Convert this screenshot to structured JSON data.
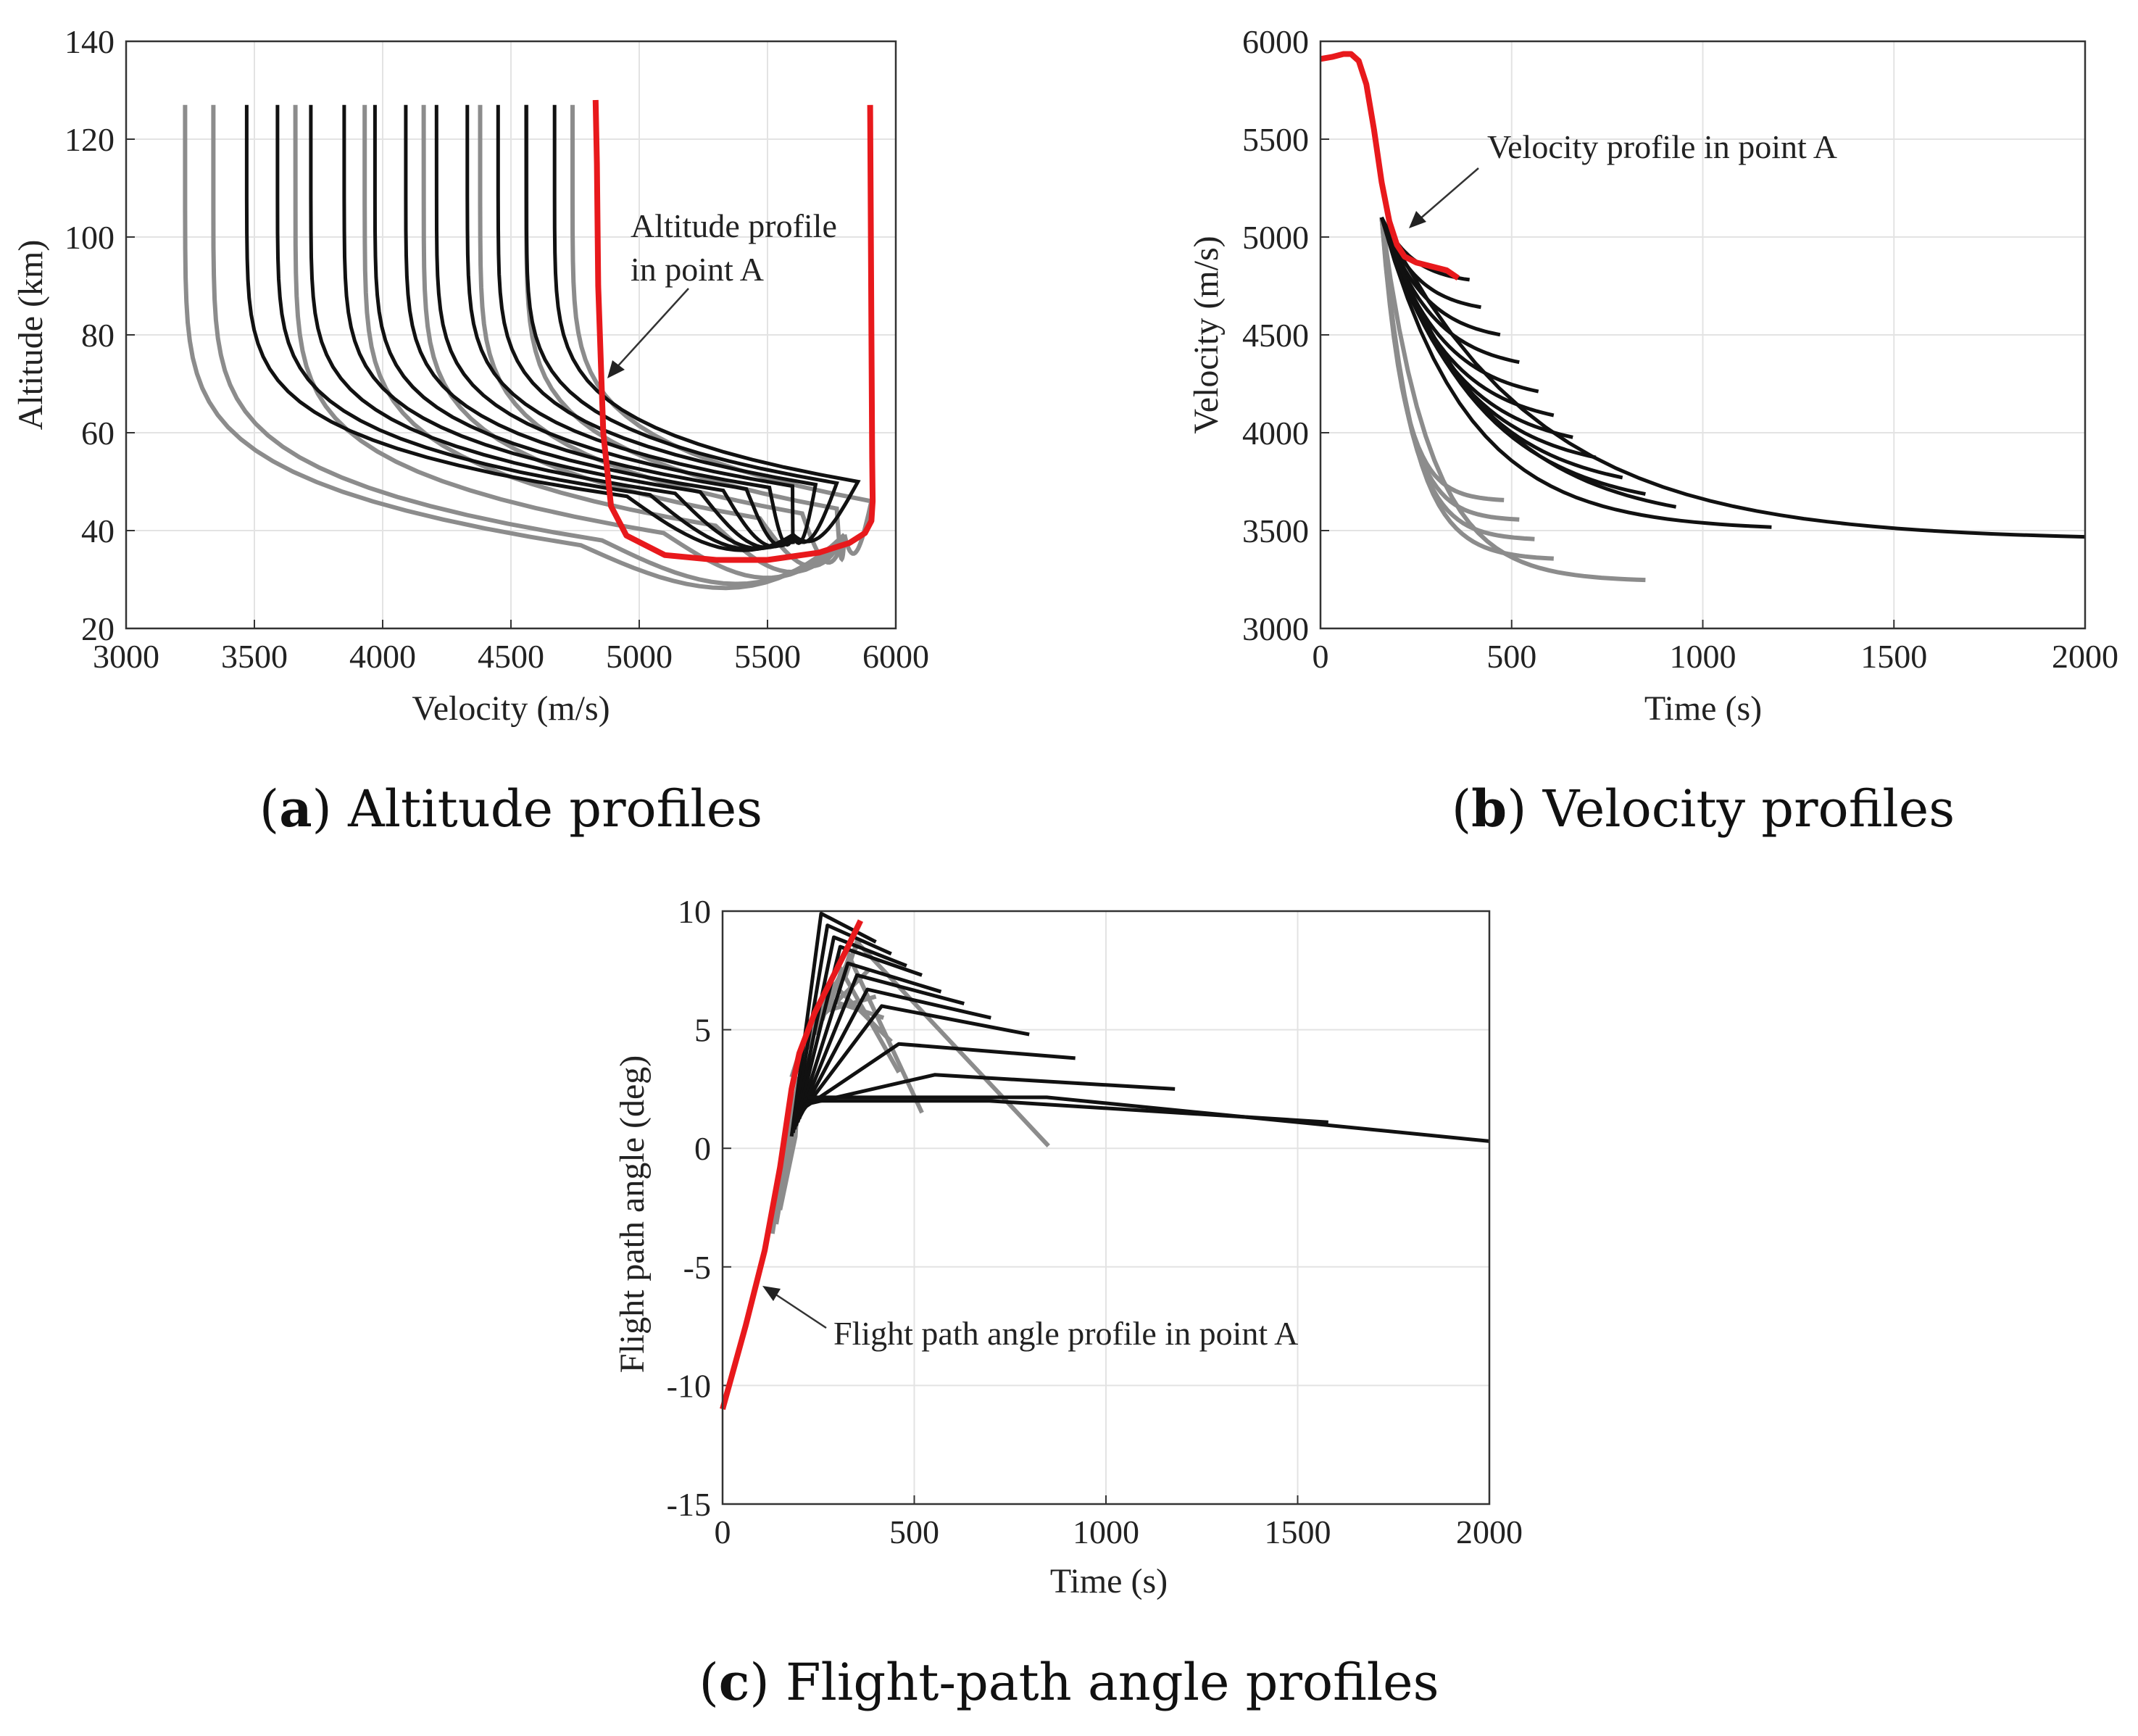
{
  "chart_data": [
    {
      "type": "line",
      "title": "Altitude profiles",
      "caption": {
        "letter": "a",
        "text": "Altitude profiles"
      },
      "xlabel": "Velocity (m/s)",
      "ylabel": "Altitude (km)",
      "xlim": [
        3000,
        6000
      ],
      "ylim": [
        20,
        140
      ],
      "xticks": [
        3000,
        3500,
        4000,
        4500,
        5000,
        5500,
        6000
      ],
      "yticks": [
        20,
        40,
        60,
        80,
        100,
        120,
        140
      ],
      "annotation": {
        "text_lines": [
          "Altitude profile",
          "in point A"
        ],
        "target": [
          4850,
          50
        ]
      },
      "series": [
        {
          "name": "Altitude profile in point A",
          "color": "#e8191c",
          "x": [
            5900,
            5905,
            5908,
            5910,
            5905,
            5880,
            5820,
            5700,
            5500,
            5300,
            5100,
            4950,
            4890,
            4860,
            4840,
            4835,
            4830
          ],
          "y": [
            127,
            80,
            55,
            46,
            42,
            39.5,
            37.5,
            35.5,
            34,
            34,
            35,
            39,
            45,
            60,
            90,
            115,
            128
          ]
        },
        {
          "name": "Grey trajectories",
          "color": "#8c8c8c",
          "start_velocities": [
            3230,
            3340,
            3660,
            3930,
            4160,
            4380,
            4560,
            4740
          ],
          "min_altitudes": [
            23,
            24,
            25.5,
            27,
            28.5,
            29.5,
            30.5,
            32
          ]
        },
        {
          "name": "Black trajectories",
          "color": "#111111",
          "start_velocities": [
            3470,
            3590,
            3720,
            3850,
            3970,
            4090,
            4210,
            4330,
            4450,
            4560,
            4670
          ],
          "min_altitudes": [
            33,
            33.3,
            33.6,
            33.9,
            34.2,
            34.5,
            34.8,
            35.1,
            35.4,
            35.7,
            36
          ]
        }
      ]
    },
    {
      "type": "line",
      "title": "Velocity profiles",
      "caption": {
        "letter": "b",
        "text": "Velocity profiles"
      },
      "xlabel": "Time (s)",
      "ylabel": "Velocity (m/s)",
      "xlim": [
        0,
        2000
      ],
      "ylim": [
        3000,
        6000
      ],
      "xticks": [
        0,
        500,
        1000,
        1500,
        2000
      ],
      "yticks": [
        3000,
        3500,
        4000,
        4500,
        5000,
        5500,
        6000
      ],
      "annotation": {
        "text_lines": [
          "Velocity profile in point A"
        ],
        "target": [
          230,
          4990
        ]
      },
      "series": [
        {
          "name": "Velocity profile in point A",
          "color": "#e8191c",
          "x": [
            0,
            30,
            60,
            80,
            100,
            120,
            140,
            160,
            180,
            200,
            220,
            250,
            290,
            330,
            360
          ],
          "y": [
            5910,
            5920,
            5935,
            5935,
            5900,
            5780,
            5550,
            5280,
            5080,
            4960,
            4900,
            4870,
            4850,
            4830,
            4790
          ]
        },
        {
          "name": "Grey trajectories",
          "color": "#8c8c8c",
          "end_times": [
            480,
            520,
            560,
            610,
            850
          ],
          "end_velocities": [
            3650,
            3550,
            3450,
            3350,
            3240
          ]
        },
        {
          "name": "Black trajectories",
          "color": "#111111",
          "end_times": [
            390,
            420,
            470,
            520,
            570,
            610,
            660,
            720,
            790,
            850,
            930,
            1180,
            2000
          ],
          "end_velocities": [
            4760,
            4610,
            4460,
            4310,
            4150,
            4020,
            3900,
            3790,
            3680,
            3590,
            3520,
            3500,
            3450
          ]
        }
      ]
    },
    {
      "type": "line",
      "title": "Flight-path angle profiles",
      "caption": {
        "letter": "c",
        "text": "Flight-path angle profiles"
      },
      "xlabel": "Time (s)",
      "ylabel": "Flight path angle (deg)",
      "xlim": [
        0,
        2000
      ],
      "ylim": [
        -15,
        10
      ],
      "xticks": [
        0,
        500,
        1000,
        1500,
        2000
      ],
      "yticks": [
        -15,
        -10,
        -5,
        0,
        5,
        10
      ],
      "annotation": {
        "text_lines": [
          "Flight path angle profile in point A"
        ],
        "target": [
          90,
          -5.8
        ]
      },
      "series": [
        {
          "name": "Flight path angle profile in point A",
          "color": "#e8191c",
          "x": [
            0,
            60,
            110,
            150,
            180,
            200,
            240,
            290,
            330,
            360
          ],
          "y": [
            -11,
            -7.5,
            -4.3,
            -0.8,
            2.5,
            4,
            5.7,
            7.3,
            8.6,
            9.6
          ]
        },
        {
          "name": "Grey trajectories",
          "color": "#8c8c8c",
          "end_times": [
            360,
            380,
            400,
            420,
            440,
            460,
            520,
            850
          ],
          "end_angles": [
            8.8,
            7.5,
            6.4,
            5.5,
            4.5,
            3.2,
            1.5,
            0.1
          ]
        },
        {
          "name": "Black trajectories",
          "color": "#111111",
          "end_times": [
            400,
            440,
            480,
            520,
            570,
            630,
            700,
            800,
            920,
            1180,
            1580,
            2000
          ],
          "end_angles": [
            8.7,
            8.2,
            7.7,
            7.3,
            6.6,
            6.1,
            5.5,
            4.8,
            3.8,
            2.5,
            1.1,
            0.3
          ]
        }
      ]
    }
  ]
}
